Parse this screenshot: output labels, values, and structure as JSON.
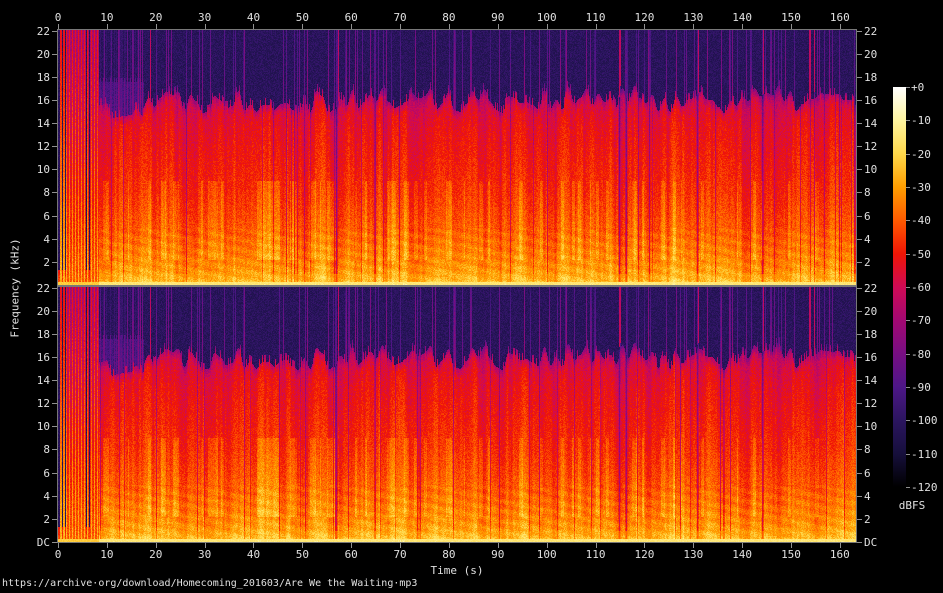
{
  "figure": {
    "background": "#000000",
    "text_color": "#e0e0e0",
    "axis_color": "#787878"
  },
  "chart_data": {
    "type": "heatmap",
    "subtype": "stereo-audio-spectrogram",
    "title": "",
    "source_caption": "https://archive·org/download/Homecoming_201603/Are We the Waiting·mp3",
    "channels": [
      {
        "name": "channel-1-top"
      },
      {
        "name": "channel-2-bottom"
      }
    ],
    "x_axis": {
      "label": "Time (s)",
      "min": 0,
      "max": 163.3,
      "tick_step": 10,
      "ticks": [
        0,
        10,
        20,
        30,
        40,
        50,
        60,
        70,
        80,
        90,
        100,
        110,
        120,
        130,
        140,
        150,
        160
      ]
    },
    "y_axis": {
      "label": "Frequency (kHz)",
      "min": 0,
      "max": 22.05,
      "tick_step": 2,
      "ticks_channel_top": [
        {
          "label": "22",
          "khz": 22
        },
        {
          "label": "20",
          "khz": 20
        },
        {
          "label": "18",
          "khz": 18
        },
        {
          "label": "16",
          "khz": 16
        },
        {
          "label": "14",
          "khz": 14
        },
        {
          "label": "12",
          "khz": 12
        },
        {
          "label": "10",
          "khz": 10
        },
        {
          "label": "8",
          "khz": 8
        },
        {
          "label": "6",
          "khz": 6
        },
        {
          "label": "4",
          "khz": 4
        },
        {
          "label": "2",
          "khz": 2
        }
      ],
      "ticks_channel_bottom": [
        {
          "label": "22",
          "khz": 22
        },
        {
          "label": "20",
          "khz": 20
        },
        {
          "label": "18",
          "khz": 18
        },
        {
          "label": "16",
          "khz": 16
        },
        {
          "label": "14",
          "khz": 14
        },
        {
          "label": "12",
          "khz": 12
        },
        {
          "label": "10",
          "khz": 10
        },
        {
          "label": "8",
          "khz": 8
        },
        {
          "label": "6",
          "khz": 6
        },
        {
          "label": "4",
          "khz": 4
        },
        {
          "label": "2",
          "khz": 2
        },
        {
          "label": "DC",
          "khz": 0
        }
      ]
    },
    "colorbar": {
      "label": "dBFS",
      "max_db": 0,
      "min_db": -120,
      "tick_labels": [
        "+0",
        "-10",
        "-20",
        "-30",
        "-40",
        "-50",
        "-60",
        "-70",
        "-80",
        "-90",
        "-100",
        "-110",
        "-120"
      ],
      "palette": [
        {
          "db": 0,
          "color": "#ffffff"
        },
        {
          "db": -10,
          "color": "#fff5a0"
        },
        {
          "db": -20,
          "color": "#ffd84a"
        },
        {
          "db": -30,
          "color": "#ff9e00"
        },
        {
          "db": -40,
          "color": "#ff5a00"
        },
        {
          "db": -50,
          "color": "#f01505"
        },
        {
          "db": -60,
          "color": "#cf0a55"
        },
        {
          "db": -70,
          "color": "#a30872"
        },
        {
          "db": -80,
          "color": "#770e82"
        },
        {
          "db": -90,
          "color": "#4d1687"
        },
        {
          "db": -100,
          "color": "#2b155f"
        },
        {
          "db": -110,
          "color": "#160f3c"
        },
        {
          "db": -120,
          "color": "#000000"
        }
      ]
    },
    "content": {
      "description": "Stereo spectrogram (two stacked channels, nearly identical) of a rock song. Loud full-bandwidth strums in the first ~8 s appear as bright vertical stripes reaching 22 kHz. From ~8-17 s a build-up with dense purple transient lines up to ~17.5 kHz. From ~17 s on, a steady loud band with an MP3-style lowpass cutoff near 16 kHz: bright yellow-white energy near DC, yellow/orange below ~6 kHz, red 6-14 kHz, crimson/magenta at the cutoff edge, black above with sparse thin purple full-height transients and brief quiet breaks.",
      "duration_s": 163,
      "lowpass_cutoff_khz": 16,
      "intro_strum_times_s": [
        0.5,
        1.1,
        1.7,
        2.3,
        2.9,
        3.5,
        4.1,
        4.7,
        5.3,
        6.0,
        6.7,
        7.4,
        8.0
      ],
      "buildup_span_s": [
        8.3,
        17.5
      ],
      "quiet_break_times_s": [
        56.9,
        64.8,
        114.8,
        116.2,
        130.8,
        144.1
      ],
      "accent_transient_times_s": [
        18.9,
        57.3,
        114.9,
        131.0,
        144.3,
        153.8,
        154.7
      ]
    }
  }
}
